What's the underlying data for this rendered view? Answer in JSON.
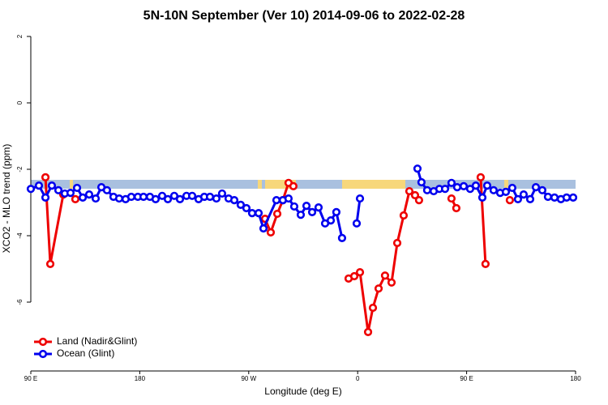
{
  "chart_data": {
    "type": "line",
    "title": "5N-10N September (Ver 10)   2014-09-06 to 2022-02-28",
    "x_label": "Longitude (deg E)",
    "y_label": "XCO2 - MLO trend (ppm)",
    "xlim": [
      90,
      540
    ],
    "ylim": [
      -8,
      2.2
    ],
    "xticks": [
      {
        "value": 90,
        "label": "90 E"
      },
      {
        "value": 180,
        "label": "180"
      },
      {
        "value": 270,
        "label": "90 W"
      },
      {
        "value": 360,
        "label": "0"
      },
      {
        "value": 450,
        "label": "90 E"
      },
      {
        "value": 540,
        "label": "180"
      }
    ],
    "yticks": [
      -6,
      -4,
      -2,
      0,
      2
    ],
    "legend": "bottom-left",
    "series": [
      {
        "name": "Land (Nadir&Glint)",
        "color": "#ee0000",
        "x": [
          102.1,
          106.1,
          116.8,
          null,
          126.8,
          null,
          283.5,
          288.2,
          293.6,
          298.2,
          302.9,
          306.9,
          null,
          352.5,
          357.2,
          361.9,
          368.6,
          372.6,
          377.3,
          382.6,
          388.0,
          392.7,
          398.0,
          402.7,
          407.4,
          410.7,
          null,
          437.5,
          441.5,
          null,
          461.6,
          465.6,
          null,
          485.7
        ],
        "values": [
          -2.24,
          -4.85,
          -2.76,
          null,
          -2.9,
          null,
          -3.49,
          -3.9,
          -3.34,
          -2.93,
          -2.41,
          -2.51,
          null,
          -5.29,
          -5.22,
          -5.1,
          -6.9,
          -6.17,
          -5.59,
          -5.2,
          -5.41,
          -4.22,
          -3.39,
          -2.66,
          -2.78,
          -2.93,
          null,
          -2.88,
          -3.17,
          null,
          -2.24,
          -4.85,
          null,
          -2.93
        ]
      },
      {
        "name": "Ocean (Glint)",
        "color": "#0000ee",
        "x": [
          90,
          96.7,
          102.1,
          107.4,
          112.8,
          118.1,
          122.8,
          128.2,
          132.9,
          138.2,
          143.6,
          148.3,
          152.9,
          158.3,
          163.0,
          168.3,
          173.0,
          178.4,
          183.1,
          188.4,
          193.1,
          198.5,
          203.2,
          208.5,
          213.2,
          218.6,
          223.3,
          228.6,
          233.3,
          238.0,
          243.3,
          248.0,
          253.4,
          258.1,
          263.4,
          268.1,
          272.8,
          278.2,
          282.2,
          292.9,
          298.2,
          302.9,
          307.6,
          313.0,
          317.7,
          322.4,
          327.7,
          333.1,
          337.8,
          342.4,
          347.1,
          null,
          359.2,
          361.9,
          null,
          409.4,
          412.7,
          417.4,
          422.8,
          427.5,
          432.2,
          437.5,
          442.2,
          447.6,
          452.9,
          457.6,
          463.0,
          467.0,
          472.3,
          477.7,
          482.4,
          487.7,
          492.4,
          497.1,
          502.5,
          507.2,
          512.5,
          517.2,
          522.6,
          527.9,
          532.6,
          538.0
        ],
        "values": [
          -2.59,
          -2.49,
          -2.85,
          -2.49,
          -2.63,
          -2.73,
          -2.71,
          -2.56,
          -2.85,
          -2.76,
          -2.88,
          -2.54,
          -2.63,
          -2.83,
          -2.88,
          -2.9,
          -2.83,
          -2.83,
          -2.83,
          -2.83,
          -2.9,
          -2.8,
          -2.9,
          -2.8,
          -2.9,
          -2.8,
          -2.8,
          -2.9,
          -2.83,
          -2.83,
          -2.88,
          -2.73,
          -2.88,
          -2.93,
          -3.07,
          -3.17,
          -3.32,
          -3.32,
          -3.78,
          -2.93,
          -2.93,
          -2.88,
          -3.12,
          -3.37,
          -3.1,
          -3.29,
          -3.15,
          -3.63,
          -3.54,
          -3.29,
          -4.07,
          null,
          -3.63,
          -2.88,
          null,
          -1.98,
          -2.39,
          -2.63,
          -2.66,
          -2.59,
          -2.59,
          -2.41,
          -2.54,
          -2.51,
          -2.59,
          -2.49,
          -2.85,
          -2.49,
          -2.63,
          -2.71,
          -2.68,
          -2.56,
          -2.9,
          -2.76,
          -2.9,
          -2.54,
          -2.63,
          -2.83,
          -2.85,
          -2.9,
          -2.85,
          -2.85
        ]
      }
    ]
  }
}
